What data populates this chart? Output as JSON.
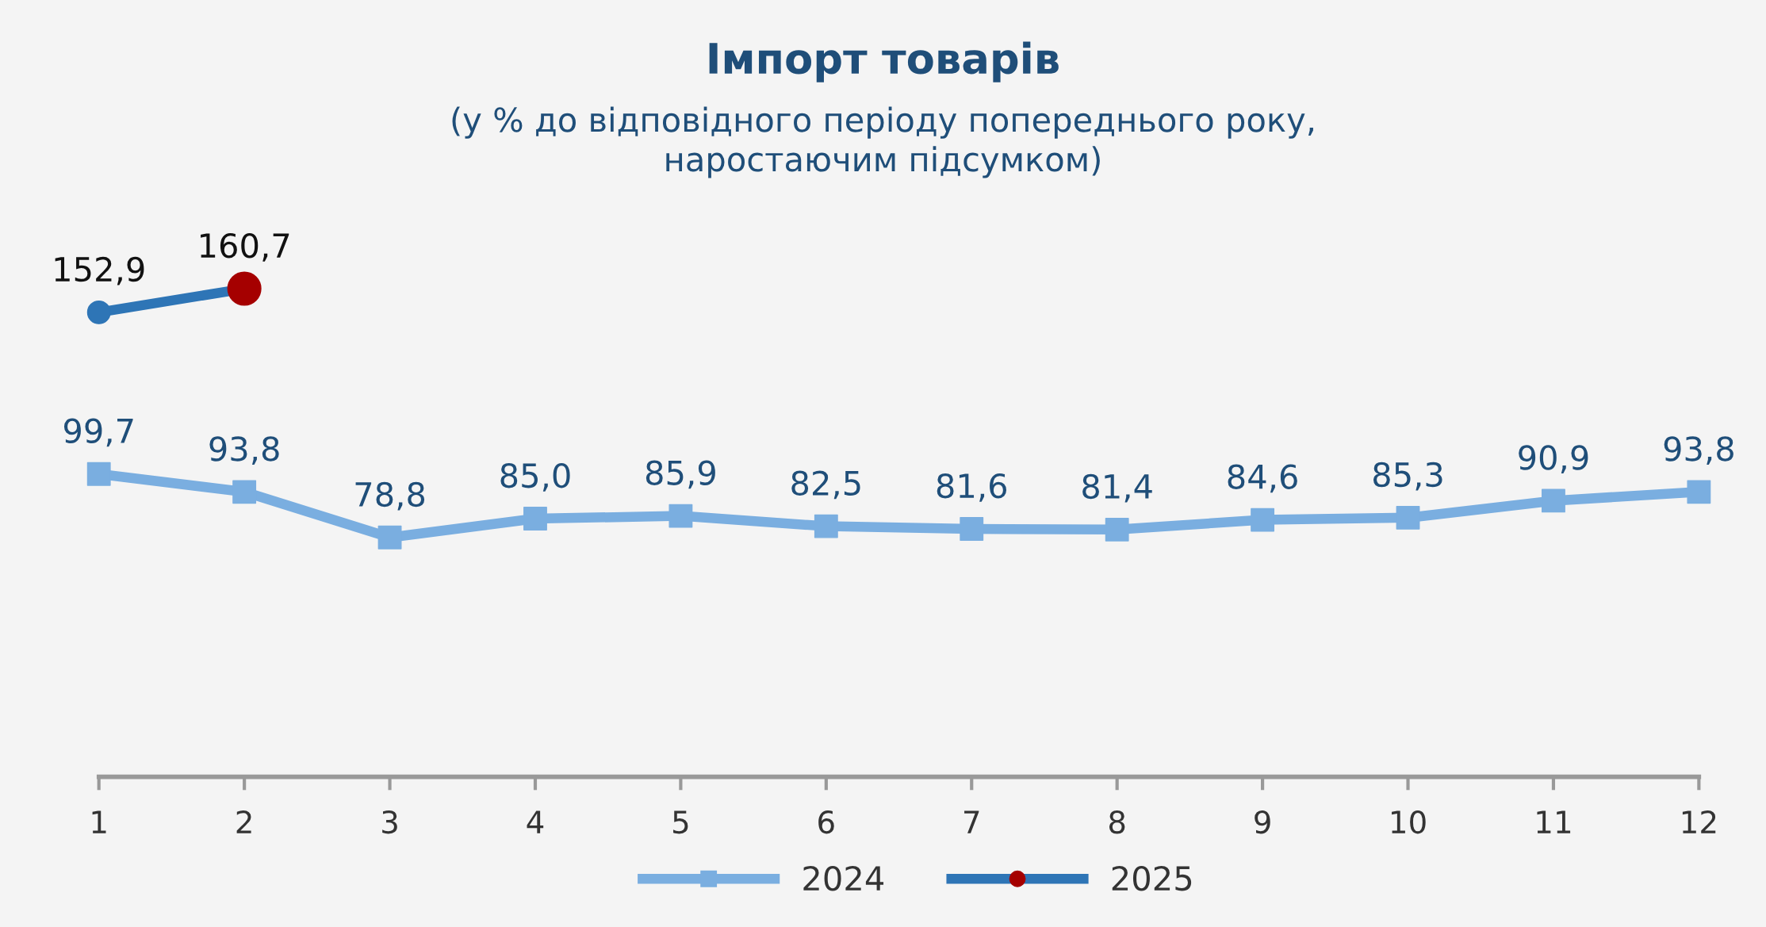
{
  "chart_data": {
    "type": "line",
    "title": "Імпорт товарів",
    "subtitle": "(у % до відповідного періоду попереднього року,\nнаростаючим підсумком)",
    "categories": [
      "1",
      "2",
      "3",
      "4",
      "5",
      "6",
      "7",
      "8",
      "9",
      "10",
      "11",
      "12"
    ],
    "series": [
      {
        "name": "2024",
        "color": "#7aaee0",
        "marker": "square",
        "values": [
          99.7,
          93.8,
          78.8,
          85.0,
          85.9,
          82.5,
          81.6,
          81.4,
          84.6,
          85.3,
          90.9,
          93.8
        ],
        "value_labels": [
          "99,7",
          "93,8",
          "78,8",
          "85,0",
          "85,9",
          "82,5",
          "81,6",
          "81,4",
          "84,6",
          "85,3",
          "90,9",
          "93,8"
        ]
      },
      {
        "name": "2025",
        "color": "#2e75b6",
        "colors": [
          "#2e75b6",
          "#a50000",
          null,
          null,
          null,
          null,
          null,
          null,
          null,
          null,
          null,
          null
        ],
        "marker": "circle",
        "values": [
          152.9,
          160.7,
          null,
          null,
          null,
          null,
          null,
          null,
          null,
          null,
          null,
          null
        ],
        "value_labels": [
          "152,9",
          "160,7",
          null,
          null,
          null,
          null,
          null,
          null,
          null,
          null,
          null,
          null
        ]
      }
    ],
    "legend": "bottom",
    "grid": false
  }
}
